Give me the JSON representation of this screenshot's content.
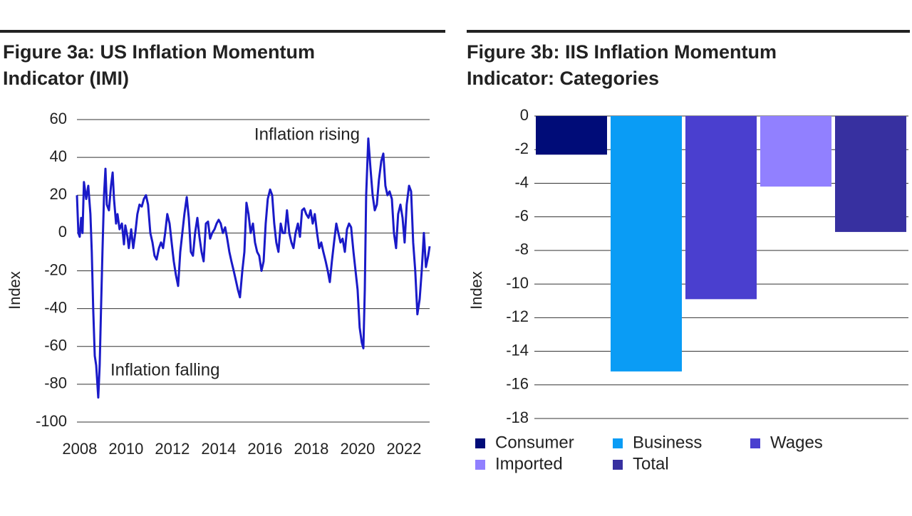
{
  "chart_data": [
    {
      "type": "line",
      "title": [
        "Figure 3a: US Inflation Momentum",
        "Indicator (IMI)"
      ],
      "ylabel": "Index",
      "annotations": [
        "Inflation rising",
        "Inflation falling"
      ],
      "xlim": [
        2007.88,
        2023.11
      ],
      "xticks": [
        2008,
        2010,
        2012,
        2014,
        2016,
        2018,
        2020,
        2022
      ],
      "ylim": [
        -100,
        60
      ],
      "yticks": [
        60,
        40,
        20,
        0,
        -20,
        -40,
        -60,
        -80,
        -100
      ],
      "grid": true,
      "x": [
        2007.88,
        2007.94,
        2008.0,
        2008.06,
        2008.12,
        2008.18,
        2008.28,
        2008.37,
        2008.46,
        2008.52,
        2008.58,
        2008.65,
        2008.71,
        2008.8,
        2008.86,
        2008.92,
        2008.98,
        2009.05,
        2009.11,
        2009.17,
        2009.26,
        2009.35,
        2009.42,
        2009.48,
        2009.57,
        2009.63,
        2009.72,
        2009.82,
        2009.91,
        2009.97,
        2010.06,
        2010.12,
        2010.22,
        2010.31,
        2010.4,
        2010.49,
        2010.58,
        2010.68,
        2010.77,
        2010.86,
        2010.95,
        2011.05,
        2011.14,
        2011.23,
        2011.32,
        2011.42,
        2011.51,
        2011.6,
        2011.69,
        2011.78,
        2011.88,
        2011.97,
        2012.06,
        2012.15,
        2012.25,
        2012.34,
        2012.43,
        2012.52,
        2012.62,
        2012.71,
        2012.8,
        2012.89,
        2012.98,
        2013.08,
        2013.17,
        2013.26,
        2013.35,
        2013.45,
        2013.54,
        2013.63,
        2013.72,
        2013.82,
        2013.91,
        2014.0,
        2014.09,
        2014.18,
        2014.28,
        2014.37,
        2014.46,
        2014.55,
        2014.65,
        2014.74,
        2014.83,
        2014.92,
        2015.02,
        2015.11,
        2015.2,
        2015.29,
        2015.38,
        2015.48,
        2015.57,
        2015.66,
        2015.75,
        2015.85,
        2015.94,
        2016.03,
        2016.12,
        2016.22,
        2016.31,
        2016.4,
        2016.49,
        2016.58,
        2016.68,
        2016.77,
        2016.86,
        2016.95,
        2017.05,
        2017.14,
        2017.23,
        2017.32,
        2017.42,
        2017.51,
        2017.6,
        2017.69,
        2017.78,
        2017.88,
        2017.97,
        2018.06,
        2018.15,
        2018.25,
        2018.34,
        2018.43,
        2018.52,
        2018.62,
        2018.71,
        2018.8,
        2018.89,
        2018.98,
        2019.08,
        2019.17,
        2019.26,
        2019.35,
        2019.45,
        2019.54,
        2019.63,
        2019.72,
        2019.82,
        2019.91,
        2020.0,
        2020.09,
        2020.18,
        2020.25,
        2020.31,
        2020.37,
        2020.46,
        2020.55,
        2020.65,
        2020.74,
        2020.83,
        2020.92,
        2021.02,
        2021.11,
        2021.2,
        2021.29,
        2021.38,
        2021.48,
        2021.57,
        2021.66,
        2021.75,
        2021.85,
        2021.94,
        2022.03,
        2022.12,
        2022.22,
        2022.31,
        2022.4,
        2022.49,
        2022.58,
        2022.68,
        2022.77,
        2022.86,
        2022.95,
        2023.05,
        2023.11
      ],
      "series": [
        {
          "color": "#1a1ac8",
          "values": [
            20,
            0,
            -2,
            8,
            0,
            27,
            18,
            25,
            10,
            -10,
            -40,
            -65,
            -70,
            -87,
            -70,
            -40,
            -10,
            20,
            34,
            15,
            12,
            25,
            32,
            18,
            5,
            10,
            2,
            5,
            -6,
            4,
            -2,
            -8,
            2,
            -8,
            0,
            10,
            15,
            14,
            18,
            20,
            15,
            0,
            -5,
            -12,
            -14,
            -8,
            -5,
            -8,
            0,
            10,
            5,
            -5,
            -15,
            -22,
            -28,
            -10,
            0,
            10,
            19,
            8,
            -10,
            -12,
            0,
            8,
            -2,
            -10,
            -15,
            5,
            6,
            -3,
            0,
            2,
            5,
            7,
            5,
            0,
            3,
            -3,
            -10,
            -15,
            -20,
            -25,
            -30,
            -34,
            -20,
            -10,
            16,
            10,
            0,
            5,
            -5,
            -10,
            -12,
            -20,
            -15,
            5,
            18,
            23,
            20,
            5,
            -5,
            -10,
            5,
            0,
            0,
            12,
            0,
            -5,
            -8,
            0,
            5,
            -2,
            12,
            13,
            10,
            8,
            12,
            5,
            10,
            0,
            -8,
            -5,
            -10,
            -15,
            -20,
            -26,
            -15,
            -5,
            5,
            0,
            -5,
            -3,
            -10,
            2,
            5,
            3,
            -10,
            -20,
            -30,
            -50,
            -58,
            -61,
            -30,
            20,
            50,
            35,
            20,
            12,
            15,
            28,
            38,
            42,
            25,
            20,
            22,
            18,
            0,
            -8,
            10,
            15,
            8,
            -5,
            15,
            25,
            22,
            -5,
            -20,
            -43,
            -35,
            -20,
            0,
            -18,
            -12,
            -7
          ]
        }
      ]
    },
    {
      "type": "bar",
      "title": [
        "Figure 3b: IIS Inflation Momentum",
        "Indicator: Categories"
      ],
      "ylabel": "Index",
      "ylim": [
        -18,
        0
      ],
      "yticks": [
        0,
        -2,
        -4,
        -6,
        -8,
        -10,
        -12,
        -14,
        -16,
        -18
      ],
      "grid": true,
      "categories": [
        "Consumer",
        "Business",
        "Wages",
        "Imported",
        "Total"
      ],
      "values": [
        -2.3,
        -15.2,
        -10.9,
        -4.2,
        -6.9
      ],
      "colors": [
        "#000c78",
        "#0a9cf5",
        "#4a3fcf",
        "#9180ff",
        "#3730a0"
      ]
    }
  ]
}
